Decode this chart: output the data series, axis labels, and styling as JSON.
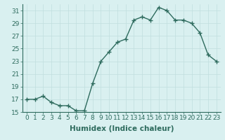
{
  "x": [
    0,
    1,
    2,
    3,
    4,
    5,
    6,
    7,
    8,
    9,
    10,
    11,
    12,
    13,
    14,
    15,
    16,
    17,
    18,
    19,
    20,
    21,
    22,
    23
  ],
  "y": [
    17,
    17,
    17.5,
    16.5,
    16,
    16,
    15.2,
    15.2,
    19.5,
    23,
    24.5,
    26,
    26.5,
    29.5,
    30,
    29.5,
    31.5,
    31,
    29.5,
    29.5,
    29,
    27.5,
    24,
    23
  ],
  "line_color": "#2e6b5e",
  "bg_color": "#d9f0f0",
  "grid_color": "#c0dede",
  "grid_minor_color": "#e0f0f0",
  "xlabel": "Humidex (Indice chaleur)",
  "ylim": [
    15,
    32
  ],
  "xlim": [
    -0.5,
    23.5
  ],
  "yticks": [
    15,
    17,
    19,
    21,
    23,
    25,
    27,
    29,
    31
  ],
  "xticks": [
    0,
    1,
    2,
    3,
    4,
    5,
    6,
    7,
    8,
    9,
    10,
    11,
    12,
    13,
    14,
    15,
    16,
    17,
    18,
    19,
    20,
    21,
    22,
    23
  ],
  "xlabel_fontsize": 7.5,
  "tick_fontsize": 6.5,
  "linewidth": 1.0,
  "marker": "+",
  "markersize": 4,
  "markeredgewidth": 1.0
}
